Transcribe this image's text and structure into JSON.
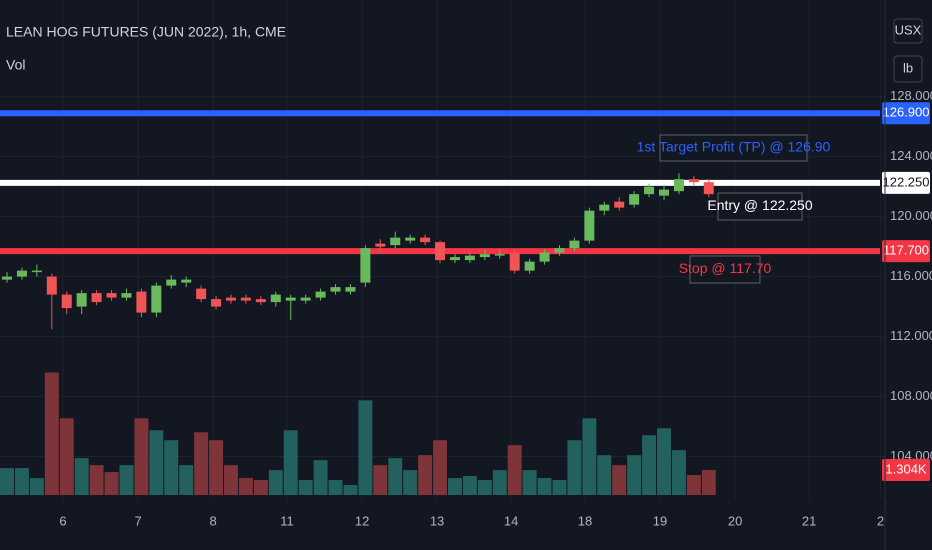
{
  "chart_data": {
    "type": "candlestick",
    "title": "LEAN HOG FUTURES (JUN 2022), 1h, CME",
    "indicator_label": "Vol",
    "ohlc": {
      "open": [
        115.8,
        116.0,
        116.3,
        116.0,
        114.8,
        114.0,
        114.9,
        114.9,
        114.6,
        115.0,
        113.6,
        115.4,
        115.6,
        115.2,
        114.5,
        114.6,
        114.6,
        114.5,
        114.3,
        114.4,
        114.4,
        114.6,
        115.0,
        115.0,
        115.6,
        118.2,
        118.1,
        118.4,
        118.6,
        118.3,
        117.1,
        117.1,
        117.3,
        117.4,
        117.6,
        116.4,
        117.0,
        117.6,
        117.9,
        118.4,
        120.4,
        121.0,
        120.8,
        121.5,
        121.4,
        121.7,
        122.5,
        122.3
      ],
      "high": [
        116.3,
        116.6,
        116.8,
        116.2,
        115.0,
        115.1,
        115.1,
        115.1,
        115.2,
        115.2,
        115.6,
        116.1,
        116.0,
        115.4,
        114.7,
        114.8,
        114.8,
        114.7,
        115.0,
        114.8,
        114.8,
        115.2,
        115.5,
        115.5,
        118.1,
        118.5,
        119.0,
        118.8,
        118.8,
        118.4,
        117.5,
        117.6,
        117.8,
        117.8,
        117.8,
        117.2,
        117.8,
        118.1,
        118.6,
        120.6,
        121.0,
        121.3,
        121.7,
        122.2,
        122.1,
        122.9,
        122.7,
        122.5
      ],
      "low": [
        115.6,
        115.8,
        116.0,
        112.5,
        113.5,
        113.5,
        114.1,
        114.4,
        114.4,
        113.3,
        113.3,
        115.2,
        115.3,
        114.3,
        113.8,
        114.2,
        114.2,
        114.1,
        114.0,
        113.1,
        114.2,
        114.4,
        114.8,
        114.8,
        115.3,
        117.7,
        117.9,
        118.2,
        118.1,
        116.9,
        116.9,
        116.9,
        117.1,
        117.2,
        116.2,
        116.2,
        116.8,
        117.4,
        117.7,
        118.2,
        120.1,
        120.4,
        120.6,
        121.3,
        121.1,
        121.5,
        122.1,
        121.3
      ],
      "close": [
        116.0,
        116.4,
        116.4,
        114.8,
        113.9,
        114.9,
        114.3,
        114.6,
        114.9,
        113.6,
        115.4,
        115.8,
        115.8,
        114.5,
        114.0,
        114.4,
        114.4,
        114.3,
        114.8,
        114.6,
        114.6,
        115.0,
        115.3,
        115.3,
        117.9,
        118.0,
        118.6,
        118.6,
        118.3,
        117.1,
        117.3,
        117.4,
        117.5,
        117.5,
        116.4,
        117.0,
        117.6,
        117.9,
        118.4,
        120.4,
        120.8,
        120.6,
        121.5,
        122.0,
        121.8,
        122.5,
        122.3,
        121.5
      ]
    },
    "up_color": "#6aba5d",
    "down_color": "#f05454",
    "volume": {
      "values": [
        1404,
        1404,
        884,
        6396,
        4004,
        1924,
        1560,
        1196,
        1560,
        4004,
        3380,
        2860,
        1560,
        3276,
        2860,
        1560,
        884,
        780,
        1300,
        3380,
        780,
        1820,
        780,
        520,
        4940,
        1560,
        1924,
        1300,
        2080,
        2860,
        884,
        988,
        780,
        1300,
        2600,
        1300,
        884,
        780,
        2860,
        4004,
        2080,
        1560,
        2080,
        3120,
        3484,
        2340,
        1040,
        1304
      ],
      "up_color": "#22615e",
      "down_color": "#7e3438",
      "last_label": "1.304K"
    },
    "volume_ylim": [
      0,
      9500
    ],
    "ylim": [
      101.1,
      134.45
    ],
    "yticks": [
      {
        "value": 128,
        "label": "128.000"
      },
      {
        "value": 124,
        "label": "124.000"
      },
      {
        "value": 120,
        "label": "120.000"
      },
      {
        "value": 116,
        "label": "116.000"
      },
      {
        "value": 112,
        "label": "112.000"
      },
      {
        "value": 108,
        "label": "108.000"
      },
      {
        "value": 104,
        "label": "104.000"
      }
    ],
    "xlim": [
      -0.47,
      58.8
    ],
    "xticks": [
      {
        "value": 3.75,
        "label": "6"
      },
      {
        "value": 8.78,
        "label": "7"
      },
      {
        "value": 13.8,
        "label": "8"
      },
      {
        "value": 18.75,
        "label": "11"
      },
      {
        "value": 23.78,
        "label": "12"
      },
      {
        "value": 28.8,
        "label": "13"
      },
      {
        "value": 33.76,
        "label": "14"
      },
      {
        "value": 38.71,
        "label": "18"
      },
      {
        "value": 43.73,
        "label": "19"
      },
      {
        "value": 48.76,
        "label": "20"
      },
      {
        "value": 53.72,
        "label": "21"
      },
      {
        "value": 58.5,
        "label": "2"
      }
    ],
    "grid": true,
    "levels": [
      {
        "value": 126.9,
        "label": "126.900",
        "color": "#2962ff",
        "annotation": "1st Target Profit (TP) @ 126.90"
      },
      {
        "value": 122.25,
        "label": "122.250",
        "color": "#ffffff",
        "annotation": "Entry @ 122.250"
      },
      {
        "value": 117.7,
        "label": "117.700",
        "color": "#f23645",
        "annotation": "Stop @ 117.70"
      }
    ]
  },
  "toolbar": {
    "currency": "USX",
    "unit": "lb"
  }
}
